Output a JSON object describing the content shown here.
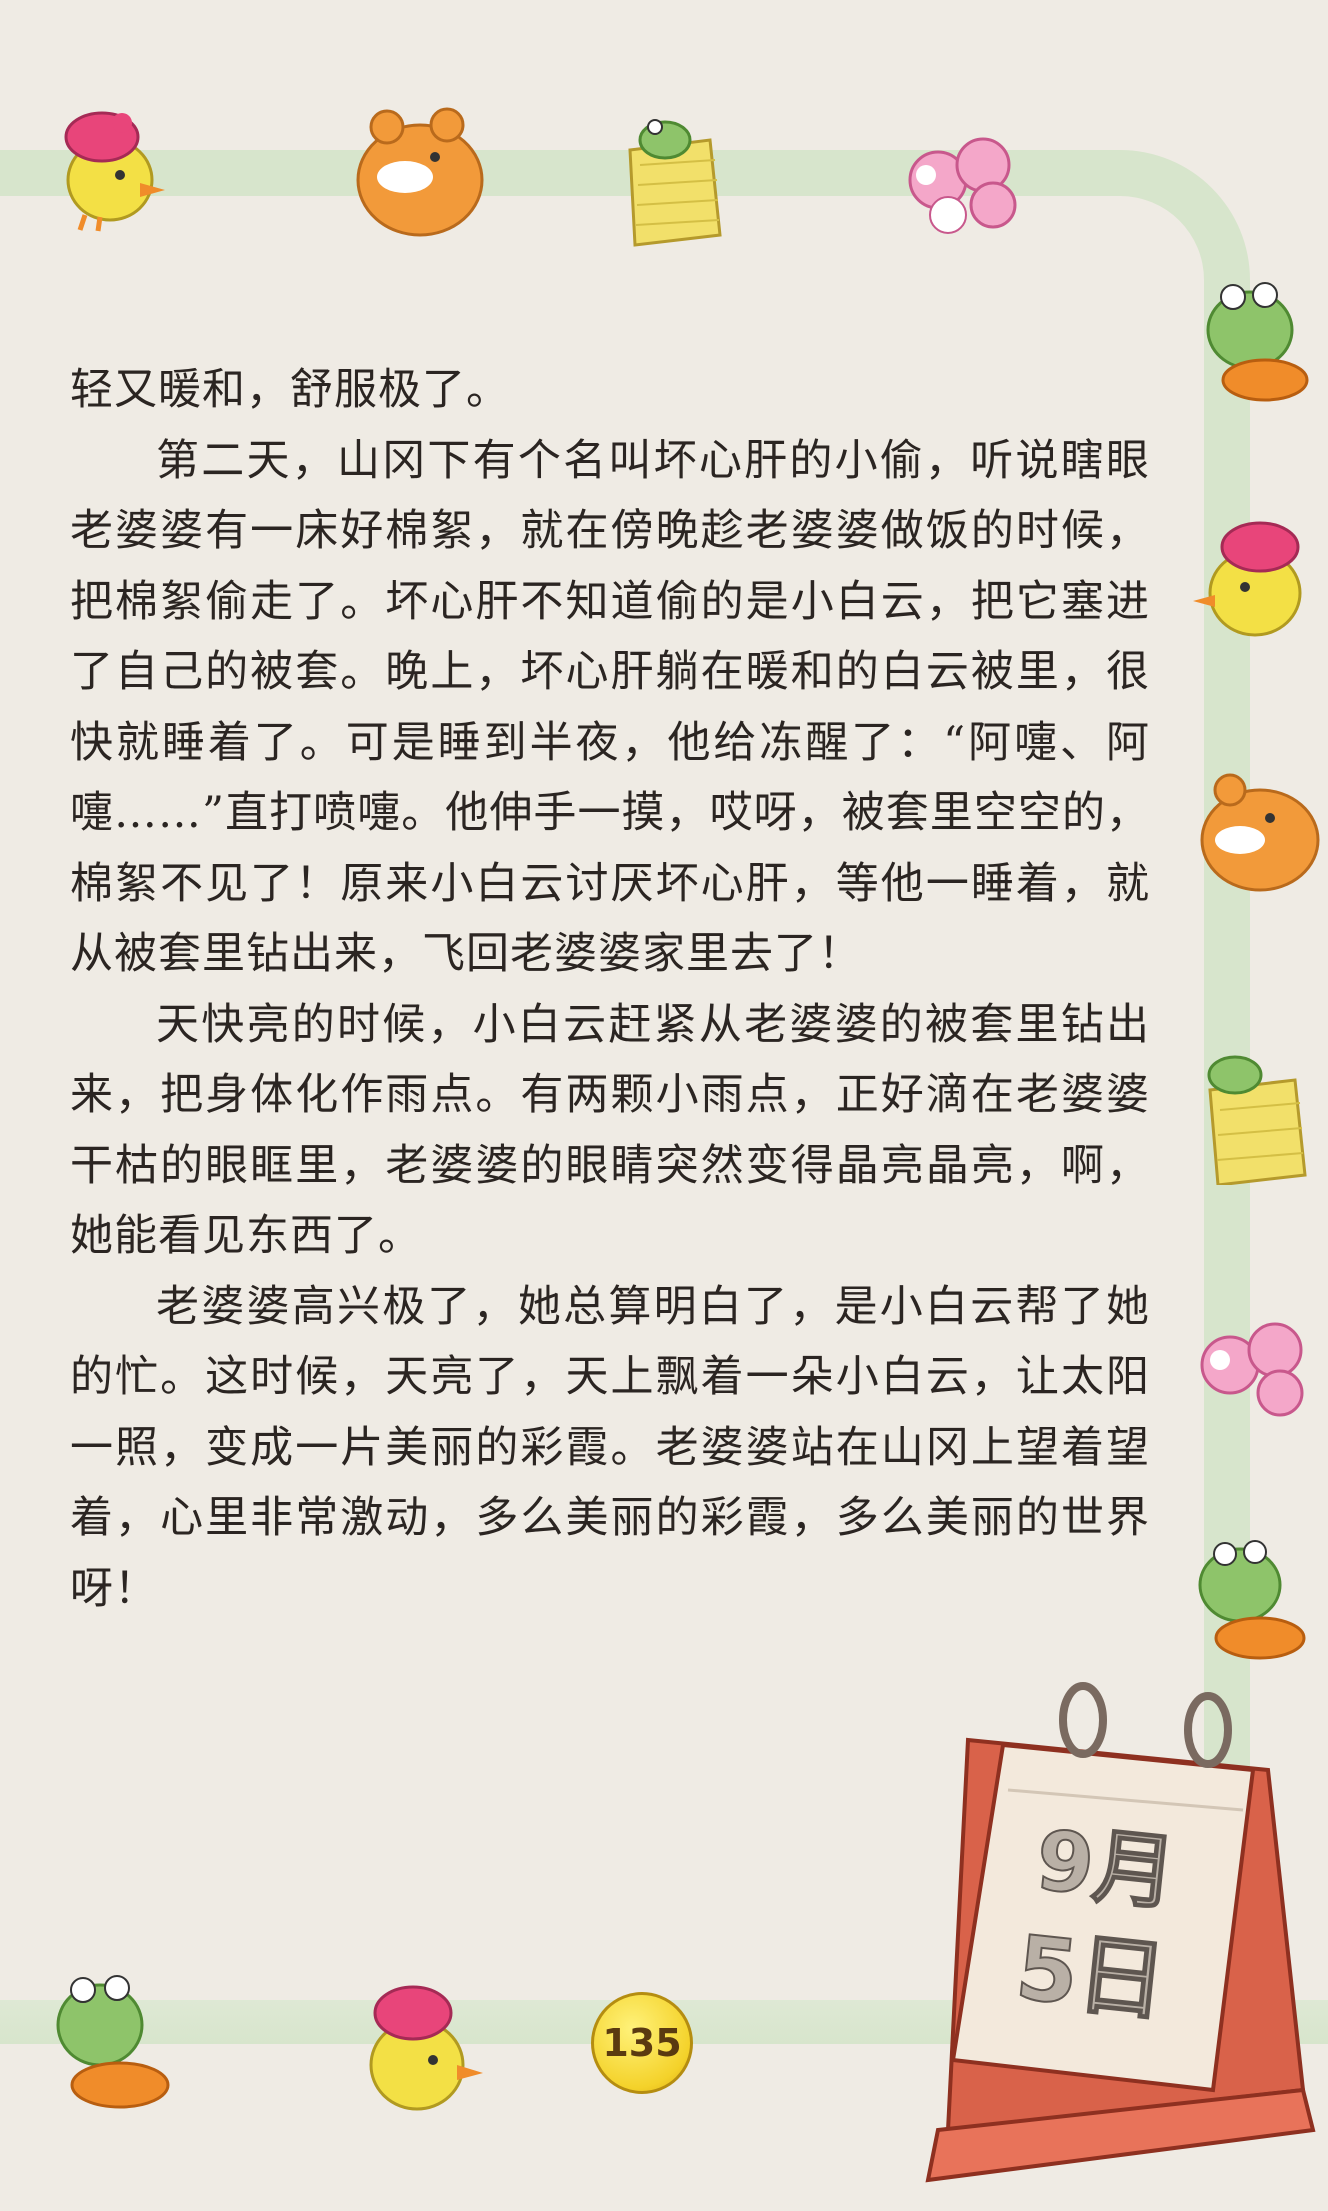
{
  "paragraphs": [
    {
      "indent": false,
      "text": "轻又暖和，舒服极了。"
    },
    {
      "indent": true,
      "text": "第二天，山冈下有个名叫坏心肝的小偷，听说瞎眼老婆婆有一床好棉絮，就在傍晚趁老婆婆做饭的时候，把棉絮偷走了。坏心肝不知道偷的是小白云，把它塞进了自己的被套。晚上，坏心肝躺在暖和的白云被里，很快就睡着了。可是睡到半夜，他给冻醒了：“阿嚏、阿嚏……”直打喷嚏。他伸手一摸，哎呀，被套里空空的，棉絮不见了！原来小白云讨厌坏心肝，等他一睡着，就从被套里钻出来，飞回老婆婆家里去了！"
    },
    {
      "indent": true,
      "text": "天快亮的时候，小白云赶紧从老婆婆的被套里钻出来，把身体化作雨点。有两颗小雨点，正好滴在老婆婆干枯的眼眶里，老婆婆的眼睛突然变得晶亮晶亮，啊，她能看见东西了。"
    },
    {
      "indent": true,
      "text": "老婆婆高兴极了，她总算明白了，是小白云帮了她的忙。这时候，天亮了，天上飘着一朵小白云，让太阳一照，变成一片美丽的彩霞。老婆婆站在山冈上望着望着，心里非常激动，多么美丽的彩霞，多么美丽的世界呀！"
    }
  ],
  "calendar": {
    "month": "9月",
    "day": "5日"
  },
  "page_number": "135",
  "icons": [
    "chick-icon",
    "bear-icon",
    "frog-bag-icon",
    "pink-flower-icon",
    "frog-icon",
    "dated-calendar-icon",
    "page-number-badge"
  ],
  "colors": {
    "background": "#efebe4",
    "frame": "#cfe3c4",
    "calendar": "#e8735a",
    "badge": "#f4d22a"
  }
}
